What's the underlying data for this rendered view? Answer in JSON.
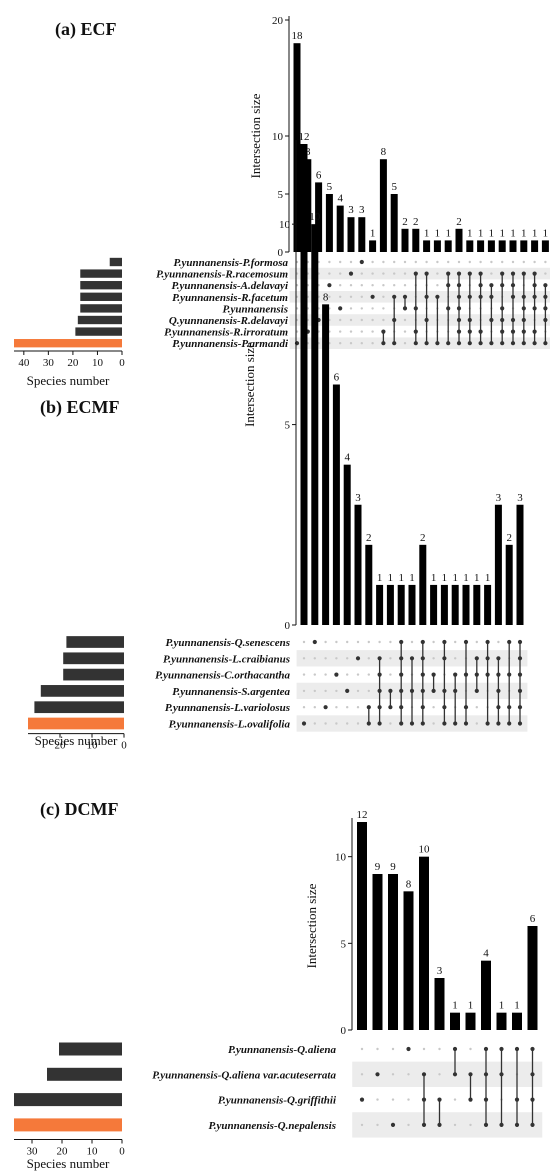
{
  "chart_data": [
    {
      "type": "bar",
      "panel_label": "(a) ECF",
      "ylabel": "Intersection size",
      "xlabel_sets": "Species number",
      "ylim": [
        0,
        20
      ],
      "yticks": [
        0,
        5,
        10,
        20
      ],
      "set_ticks": [
        40,
        30,
        20,
        10,
        0
      ],
      "set_max": 44,
      "sets": [
        {
          "name": "P.yunnanensis-P.formosa",
          "size": 5,
          "highlight": false
        },
        {
          "name": "P.yunnanensis-R.racemosum",
          "size": 17,
          "highlight": false
        },
        {
          "name": "P.yunnanensis-A.delavayi",
          "size": 17,
          "highlight": false
        },
        {
          "name": "P.yunnanensis-R.facetum",
          "size": 17,
          "highlight": false
        },
        {
          "name": "P.yunnanensis",
          "size": 17,
          "highlight": false
        },
        {
          "name": "Q.yunnanensis-R.delavayi",
          "size": 18,
          "highlight": false
        },
        {
          "name": "P.yunnanensis-R.irroratum",
          "size": 19,
          "highlight": false
        },
        {
          "name": "P.yunnanensis-P.armandi",
          "size": 44,
          "highlight": true
        }
      ],
      "intersections": [
        {
          "value": 18,
          "members": [
            7
          ]
        },
        {
          "value": 8,
          "members": [
            6
          ]
        },
        {
          "value": 6,
          "members": [
            5
          ]
        },
        {
          "value": 5,
          "members": [
            2
          ]
        },
        {
          "value": 4,
          "members": [
            4
          ]
        },
        {
          "value": 3,
          "members": [
            1
          ]
        },
        {
          "value": 3,
          "members": [
            0
          ]
        },
        {
          "value": 1,
          "members": [
            3
          ]
        },
        {
          "value": 8,
          "members": [
            6,
            7
          ]
        },
        {
          "value": 5,
          "members": [
            3,
            5,
            7
          ]
        },
        {
          "value": 2,
          "members": [
            3,
            4
          ]
        },
        {
          "value": 2,
          "members": [
            1,
            4,
            6,
            7
          ]
        },
        {
          "value": 1,
          "members": [
            1,
            3,
            5,
            7
          ]
        },
        {
          "value": 1,
          "members": [
            3,
            7
          ]
        },
        {
          "value": 1,
          "members": [
            1,
            2,
            4,
            7
          ]
        },
        {
          "value": 2,
          "members": [
            1,
            2,
            3,
            4,
            5,
            6,
            7
          ]
        },
        {
          "value": 1,
          "members": [
            1,
            3,
            5,
            6,
            7
          ]
        },
        {
          "value": 1,
          "members": [
            1,
            2,
            3,
            6,
            7
          ]
        },
        {
          "value": 1,
          "members": [
            2,
            3,
            5,
            7
          ]
        },
        {
          "value": 1,
          "members": [
            1,
            2,
            4,
            5,
            6,
            7
          ]
        },
        {
          "value": 1,
          "members": [
            1,
            2,
            3,
            5,
            6,
            7
          ]
        },
        {
          "value": 1,
          "members": [
            1,
            3,
            4,
            5,
            6,
            7
          ]
        },
        {
          "value": 1,
          "members": [
            1,
            2,
            3,
            4,
            6,
            7
          ]
        },
        {
          "value": 1,
          "members": [
            2,
            3,
            4,
            5,
            7
          ]
        },
        {
          "value": 1,
          "members": [
            1,
            2,
            4,
            5,
            7
          ]
        },
        {
          "value": 1,
          "members": [
            1,
            2,
            3,
            4,
            5,
            7
          ]
        }
      ]
    },
    {
      "type": "bar",
      "panel_label": "(b) ECMF",
      "ylabel": "Intersection size",
      "xlabel_sets": "Species number",
      "ylim": [
        0,
        12
      ],
      "yticks": [
        0,
        5,
        10
      ],
      "set_ticks": [
        20,
        10,
        0
      ],
      "set_max": 30,
      "sets": [
        {
          "name": "P.yunnanensis-Q.senescens",
          "size": 18,
          "highlight": false
        },
        {
          "name": "P.yunnanensis-L.craibianus",
          "size": 19,
          "highlight": false
        },
        {
          "name": "P.yunnanensis-C.orthacantha",
          "size": 19,
          "highlight": false
        },
        {
          "name": "P.yunnanensis-S.argentea",
          "size": 26,
          "highlight": false
        },
        {
          "name": "P.yunnanensis-L.variolosus",
          "size": 28,
          "highlight": false
        },
        {
          "name": "P.yunnanensis-L.ovalifolia",
          "size": 30,
          "highlight": true
        }
      ],
      "intersections": [
        {
          "value": 12,
          "members": [
            5
          ]
        },
        {
          "value": 10,
          "members": [
            0
          ]
        },
        {
          "value": 8,
          "members": [
            4
          ]
        },
        {
          "value": 6,
          "members": [
            2
          ]
        },
        {
          "value": 4,
          "members": [
            3
          ]
        },
        {
          "value": 3,
          "members": [
            1
          ]
        },
        {
          "value": 2,
          "members": [
            4,
            5
          ]
        },
        {
          "value": 1,
          "members": [
            1,
            2,
            3,
            4,
            5
          ]
        },
        {
          "value": 1,
          "members": [
            3,
            4
          ]
        },
        {
          "value": 1,
          "members": [
            0,
            1,
            2,
            3,
            4,
            5
          ]
        },
        {
          "value": 1,
          "members": [
            1,
            3,
            5
          ]
        },
        {
          "value": 2,
          "members": [
            0,
            1,
            2,
            3,
            4,
            5
          ]
        },
        {
          "value": 1,
          "members": [
            2,
            3
          ]
        },
        {
          "value": 1,
          "members": [
            0,
            1,
            3,
            4,
            5
          ]
        },
        {
          "value": 1,
          "members": [
            2,
            3,
            5
          ]
        },
        {
          "value": 1,
          "members": [
            0,
            2,
            4,
            5
          ]
        },
        {
          "value": 1,
          "members": [
            1,
            2,
            3
          ]
        },
        {
          "value": 1,
          "members": [
            0,
            1,
            2,
            5
          ]
        },
        {
          "value": 3,
          "members": [
            1,
            2,
            3,
            4,
            5
          ]
        },
        {
          "value": 2,
          "members": [
            0,
            2,
            4,
            5
          ]
        },
        {
          "value": 3,
          "members": [
            0,
            1,
            2,
            3,
            4,
            5
          ]
        }
      ]
    },
    {
      "type": "bar",
      "panel_label": "(c) DCMF",
      "ylabel": "Intersection size",
      "xlabel_sets": "Species number",
      "ylim": [
        0,
        12
      ],
      "yticks": [
        0,
        5,
        10
      ],
      "set_ticks": [
        30,
        20,
        10,
        0
      ],
      "set_max": 36,
      "sets": [
        {
          "name": "P.yunnanensis-Q.aliena",
          "size": 21,
          "highlight": false
        },
        {
          "name": "P.yunnanensis-Q.aliena var.acuteserrata",
          "size": 25,
          "highlight": false
        },
        {
          "name": "P.yunnanensis-Q.griffithii",
          "size": 36,
          "highlight": false
        },
        {
          "name": "P.yunnanensis-Q.nepalensis",
          "size": 36,
          "highlight": true
        }
      ],
      "intersections": [
        {
          "value": 12,
          "members": [
            2
          ]
        },
        {
          "value": 9,
          "members": [
            1
          ]
        },
        {
          "value": 9,
          "members": [
            3
          ]
        },
        {
          "value": 8,
          "members": [
            0
          ]
        },
        {
          "value": 10,
          "members": [
            1,
            2,
            3
          ]
        },
        {
          "value": 3,
          "members": [
            2,
            3
          ]
        },
        {
          "value": 1,
          "members": [
            0,
            1
          ]
        },
        {
          "value": 1,
          "members": [
            1,
            2
          ]
        },
        {
          "value": 4,
          "members": [
            0,
            1,
            2,
            3
          ]
        },
        {
          "value": 1,
          "members": [
            0,
            1,
            3
          ]
        },
        {
          "value": 1,
          "members": [
            0,
            2,
            3
          ]
        },
        {
          "value": 6,
          "members": [
            0,
            1,
            2,
            3
          ]
        }
      ]
    }
  ]
}
